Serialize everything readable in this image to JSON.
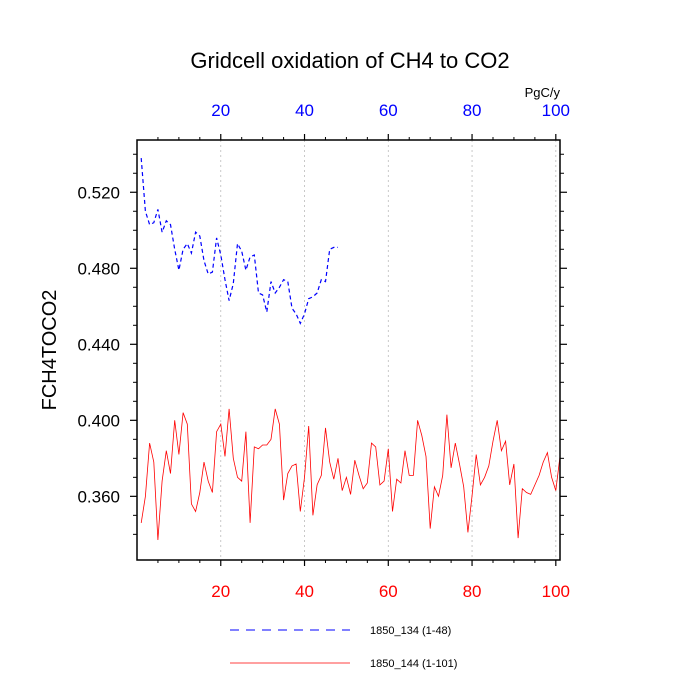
{
  "chart_data": {
    "type": "line",
    "title": "Gridcell oxidation of CH4 to CO2",
    "ylabel": "FCH4TOCO2",
    "units": "PgC/y",
    "xlim": [
      0,
      101
    ],
    "ylim": [
      0.3265,
      0.5475
    ],
    "x_ticks": [
      20,
      40,
      60,
      80,
      100
    ],
    "x_tick_labels": [
      "20",
      "40",
      "60",
      "80",
      "100"
    ],
    "y_ticks": [
      0.36,
      0.4,
      0.44,
      0.48,
      0.52
    ],
    "y_tick_labels": [
      "0.360",
      "0.400",
      "0.440",
      "0.480",
      "0.520"
    ],
    "top_axis_color": "#0000ff",
    "bottom_axis_color": "#ff0000",
    "series": [
      {
        "name": "1850_134 (1-48)",
        "color": "#0000ff",
        "dash": "dashed",
        "x": [
          1,
          2,
          3,
          4,
          5,
          6,
          7,
          8,
          9,
          10,
          11,
          12,
          13,
          14,
          15,
          16,
          17,
          18,
          19,
          20,
          21,
          22,
          23,
          24,
          25,
          26,
          27,
          28,
          29,
          30,
          31,
          32,
          33,
          34,
          35,
          36,
          37,
          38,
          39,
          40,
          41,
          42,
          43,
          44,
          45,
          46,
          47,
          48
        ],
        "values": [
          0.538,
          0.51,
          0.503,
          0.504,
          0.511,
          0.499,
          0.505,
          0.503,
          0.49,
          0.479,
          0.49,
          0.493,
          0.488,
          0.499,
          0.497,
          0.484,
          0.477,
          0.478,
          0.496,
          0.487,
          0.474,
          0.463,
          0.472,
          0.493,
          0.489,
          0.479,
          0.486,
          0.487,
          0.467,
          0.466,
          0.457,
          0.473,
          0.467,
          0.47,
          0.474,
          0.473,
          0.459,
          0.456,
          0.451,
          0.456,
          0.464,
          0.465,
          0.467,
          0.474,
          0.473,
          0.49,
          0.491,
          0.491
        ]
      },
      {
        "name": "1850_144 (1-101)",
        "color": "#ff0000",
        "dash": "solid",
        "x": [
          1,
          2,
          3,
          4,
          5,
          6,
          7,
          8,
          9,
          10,
          11,
          12,
          13,
          14,
          15,
          16,
          17,
          18,
          19,
          20,
          21,
          22,
          23,
          24,
          25,
          26,
          27,
          28,
          29,
          30,
          31,
          32,
          33,
          34,
          35,
          36,
          37,
          38,
          39,
          40,
          41,
          42,
          43,
          44,
          45,
          46,
          47,
          48,
          49,
          50,
          51,
          52,
          53,
          54,
          55,
          56,
          57,
          58,
          59,
          60,
          61,
          62,
          63,
          64,
          65,
          66,
          67,
          68,
          69,
          70,
          71,
          72,
          73,
          74,
          75,
          76,
          77,
          78,
          79,
          80,
          81,
          82,
          83,
          84,
          85,
          86,
          87,
          88,
          89,
          90,
          91,
          92,
          93,
          94,
          95,
          96,
          97,
          98,
          99,
          100,
          101
        ],
        "values": [
          0.346,
          0.36,
          0.388,
          0.378,
          0.337,
          0.368,
          0.384,
          0.372,
          0.4,
          0.382,
          0.404,
          0.398,
          0.356,
          0.352,
          0.362,
          0.378,
          0.368,
          0.362,
          0.394,
          0.398,
          0.381,
          0.406,
          0.38,
          0.37,
          0.368,
          0.394,
          0.346,
          0.386,
          0.385,
          0.387,
          0.387,
          0.39,
          0.406,
          0.398,
          0.358,
          0.372,
          0.376,
          0.377,
          0.352,
          0.37,
          0.397,
          0.35,
          0.366,
          0.371,
          0.396,
          0.378,
          0.369,
          0.38,
          0.363,
          0.37,
          0.361,
          0.379,
          0.371,
          0.364,
          0.367,
          0.388,
          0.386,
          0.366,
          0.368,
          0.385,
          0.352,
          0.369,
          0.367,
          0.384,
          0.371,
          0.371,
          0.4,
          0.392,
          0.381,
          0.343,
          0.365,
          0.36,
          0.371,
          0.403,
          0.375,
          0.388,
          0.377,
          0.365,
          0.341,
          0.36,
          0.382,
          0.366,
          0.37,
          0.376,
          0.389,
          0.4,
          0.384,
          0.389,
          0.366,
          0.377,
          0.338,
          0.364,
          0.362,
          0.361,
          0.366,
          0.371,
          0.378,
          0.383,
          0.37,
          0.363,
          0.381
        ]
      }
    ]
  }
}
